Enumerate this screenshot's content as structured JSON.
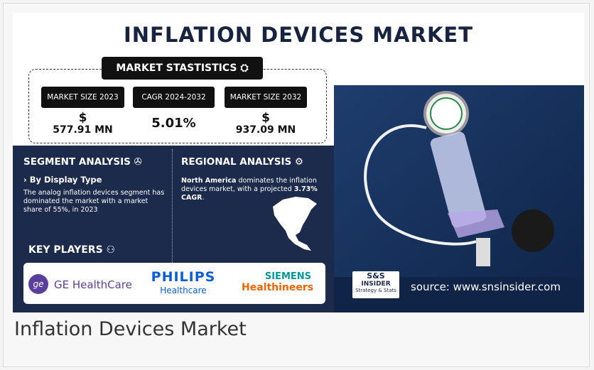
{
  "infographic": {
    "title": "INFLATION DEVICES MARKET",
    "stats_header": "MARKET STASTISTICS",
    "stats": [
      {
        "label": "MARKET SIZE 2023",
        "currency": "$",
        "value": "577.91 MN"
      },
      {
        "label": "CAGR 2024-2032",
        "value": "5.01%"
      },
      {
        "label": "MARKET SIZE 2032",
        "currency": "$",
        "value": "937.09 MN"
      }
    ],
    "segment": {
      "heading": "SEGMENT ANALYSIS",
      "subheading": "› By Display Type",
      "text": "The analog inflation devices segment has dominated the market with a market share of 55%, in 2023"
    },
    "regional": {
      "heading": "REGIONAL ANALYSIS",
      "region": "North America",
      "text": " dominates the inflation devices market, with a projected ",
      "cagr": "3.73% CAGR",
      "end": "."
    },
    "key_players": {
      "heading": "KEY PLAYERS",
      "ge": "GE HealthCare",
      "philips": "PHILIPS",
      "philips_sub": "Healthcare",
      "siemens": "SIEMENS",
      "siemens_sub": "Healthineers"
    },
    "brand": {
      "top": "S&S",
      "middle": "INSIDER",
      "bottom": "Strategy & Stats"
    },
    "source": "source: www.snsinsider.com"
  },
  "caption": "Inflation Devices Market"
}
